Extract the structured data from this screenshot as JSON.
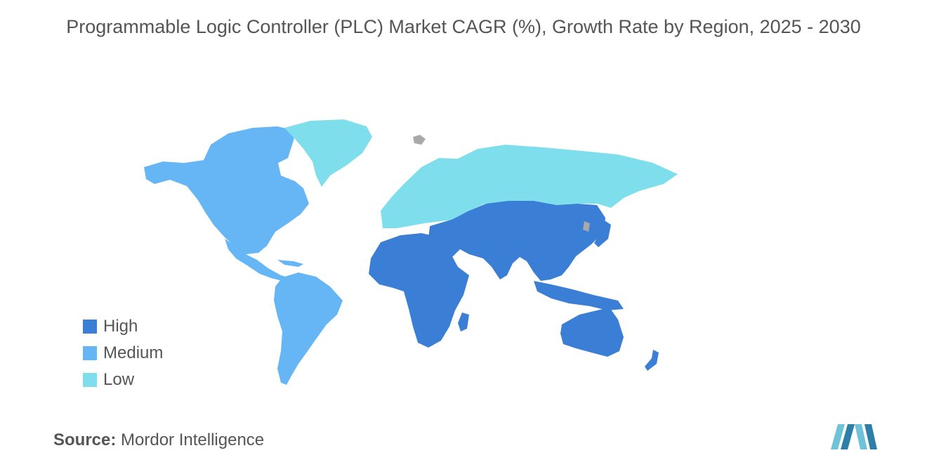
{
  "title": "Programmable Logic Controller (PLC) Market CAGR (%), Growth Rate by Region, 2025 - 2030",
  "legend": {
    "items": [
      {
        "label": "High",
        "color": "#3a7fd5"
      },
      {
        "label": "Medium",
        "color": "#66b5f5"
      },
      {
        "label": "Low",
        "color": "#7fdeec"
      }
    ]
  },
  "regions": [
    {
      "name": "North America",
      "level": "Medium"
    },
    {
      "name": "South America",
      "level": "Medium"
    },
    {
      "name": "Europe",
      "level": "Low"
    },
    {
      "name": "Russia",
      "level": "Low"
    },
    {
      "name": "Greenland",
      "level": "Low"
    },
    {
      "name": "Asia",
      "level": "High"
    },
    {
      "name": "Middle East",
      "level": "High"
    },
    {
      "name": "Africa",
      "level": "High"
    },
    {
      "name": "Oceania",
      "level": "High"
    }
  ],
  "source": {
    "label": "Source:",
    "value": "Mordor Intelligence"
  },
  "colors": {
    "text": "#555555",
    "no_data": "#a9a9a9",
    "logo_light": "#6fc3d9",
    "logo_dark": "#2d7fa8"
  }
}
